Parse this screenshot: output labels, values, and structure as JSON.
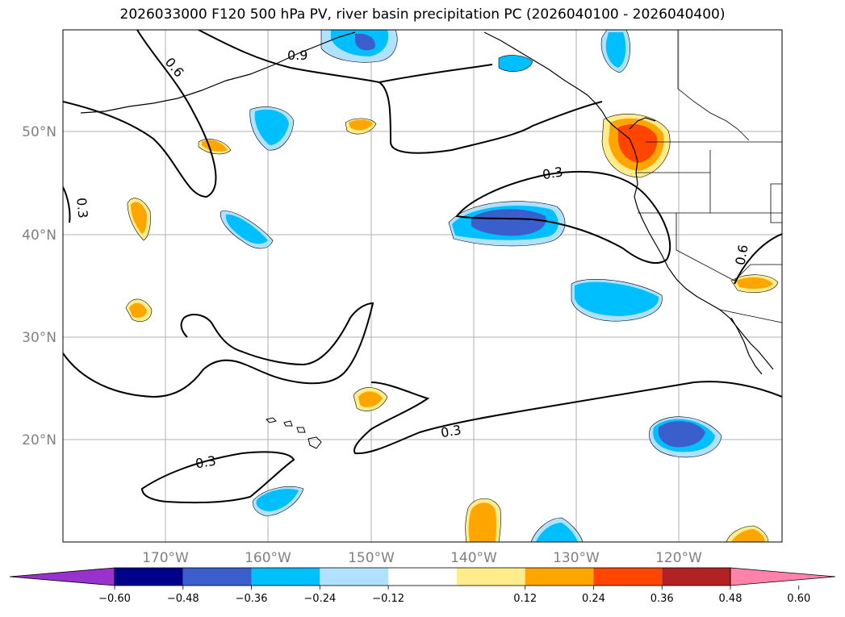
{
  "title": "2026033000 F120 500 hPa PV, river basin precipitation PC (2026040100 - 2026040400)",
  "map": {
    "lat_labels": [
      "50°N",
      "40°N",
      "30°N",
      "20°N"
    ],
    "lon_labels": [
      "170°W",
      "160°W",
      "150°W",
      "140°W",
      "130°W",
      "120°W"
    ],
    "contour_labels": [
      "0.6",
      "0.3",
      "0.9",
      "0.3",
      "0.6",
      "0.3",
      "0.3"
    ],
    "colors": {
      "neg_060": "#9932cc",
      "neg_048": "#00008b",
      "neg_036": "#3a5fcd",
      "neg_024": "#00bfff",
      "neg_012": "#b0e2ff",
      "pos_012": "#ffec8b",
      "pos_024": "#ffa500",
      "pos_036": "#ff4500",
      "pos_048": "#b22222",
      "pos_060": "#ff82ab"
    }
  },
  "colorbar": {
    "ticks": [
      "−0.60",
      "−0.48",
      "−0.36",
      "−0.24",
      "−0.12",
      "0.12",
      "0.24",
      "0.36",
      "0.48",
      "0.60"
    ],
    "colors": [
      "#9932cc",
      "#00008b",
      "#3a5fcd",
      "#00bfff",
      "#b0e2ff",
      "#ffffff",
      "#ffec8b",
      "#ffa500",
      "#ff4500",
      "#b22222",
      "#ff82ab"
    ]
  }
}
